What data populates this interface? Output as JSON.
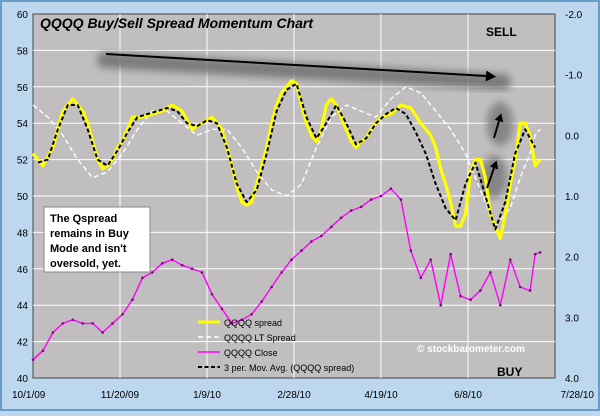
{
  "chart_data": {
    "type": "line",
    "title": "QQQQ Buy/Sell Spread Momentum Chart",
    "x_tick_labels": [
      "10/1/09",
      "11/20/09",
      "1/9/10",
      "2/28/10",
      "4/19/10",
      "6/8/10",
      "7/28/10"
    ],
    "left_axis": {
      "range": [
        40,
        60
      ],
      "ticks": [
        40,
        42,
        44,
        46,
        48,
        50,
        52,
        54,
        56,
        58,
        60
      ],
      "label": ""
    },
    "right_axis": {
      "range": [
        -2.0,
        4.0
      ],
      "inverted": true,
      "ticks": [
        "-2.0",
        "-1.0",
        "0.0",
        "1.0",
        "2.0",
        "3.0",
        "4.0"
      ],
      "label": ""
    },
    "grid": true,
    "legend_position": "bottom-center",
    "annotations": {
      "sell": "SELL",
      "buy": "BUY",
      "note": "The Qspread remains in Buy Mode and isn't oversold, yet.",
      "copyright": "© stockbarometer.com"
    },
    "series": [
      {
        "name": "QQQQ spread",
        "axis": "right",
        "color": "#ffff00",
        "x": [
          0,
          2,
          4,
          6,
          8,
          10,
          11,
          12,
          13,
          14,
          15,
          16,
          17,
          18,
          19,
          20,
          22,
          24,
          26,
          28,
          30,
          32,
          34,
          36,
          38,
          39,
          40,
          41,
          42,
          43,
          44,
          45,
          46,
          47,
          48,
          49,
          50,
          51,
          52,
          53,
          54,
          55,
          56,
          57,
          58,
          59,
          60,
          61,
          62,
          63,
          64,
          65,
          66,
          67,
          68,
          70,
          72,
          74,
          76,
          78,
          80,
          81,
          82,
          83,
          84,
          85,
          86,
          87,
          88,
          89,
          90,
          91,
          92,
          93,
          94,
          95,
          96,
          97,
          98,
          99,
          100,
          101,
          102
        ],
        "values": [
          0.3,
          0.5,
          0.2,
          -0.4,
          -0.6,
          -0.4,
          -0.2,
          0.1,
          0.4,
          0.55,
          0.5,
          0.4,
          0.2,
          0.1,
          -0.1,
          -0.3,
          -0.3,
          -0.35,
          -0.4,
          -0.5,
          -0.4,
          -0.1,
          -0.2,
          -0.3,
          -0.1,
          0.2,
          0.5,
          0.85,
          1.1,
          1.15,
          1.1,
          0.8,
          0.5,
          0.2,
          -0.2,
          -0.5,
          -0.7,
          -0.8,
          -0.9,
          -0.85,
          -0.5,
          -0.2,
          0.0,
          0.1,
          -0.1,
          -0.5,
          -0.6,
          -0.5,
          -0.3,
          -0.1,
          0.1,
          0.2,
          0.1,
          0.05,
          -0.1,
          -0.3,
          -0.35,
          -0.5,
          -0.45,
          -0.2,
          0.0,
          0.2,
          0.55,
          0.8,
          1.1,
          1.5,
          1.5,
          1.3,
          0.6,
          0.4,
          0.4,
          0.7,
          1.3,
          1.5,
          1.7,
          1.3,
          0.8,
          0.4,
          -0.2,
          -0.2,
          0.0,
          0.5,
          0.4
        ]
      },
      {
        "name": "QQQQ LT Spread",
        "axis": "right",
        "color": "#ffffff",
        "x": [
          0,
          3,
          6,
          9,
          12,
          15,
          18,
          21,
          24,
          27,
          30,
          33,
          36,
          39,
          42,
          45,
          48,
          51,
          54,
          57,
          60,
          63,
          66,
          69,
          72,
          75,
          78,
          81,
          84,
          87,
          90,
          93,
          96,
          98,
          100,
          101,
          102
        ],
        "values": [
          -0.5,
          -0.3,
          0.0,
          0.4,
          0.7,
          0.6,
          0.3,
          -0.1,
          -0.4,
          -0.4,
          -0.2,
          0.0,
          -0.1,
          -0.1,
          0.2,
          0.6,
          0.9,
          1.0,
          0.8,
          0.2,
          -0.3,
          -0.5,
          -0.4,
          -0.3,
          -0.6,
          -0.8,
          -0.7,
          -0.4,
          -0.1,
          0.3,
          0.9,
          1.5,
          1.2,
          0.7,
          0.3,
          0.0,
          -0.1
        ]
      },
      {
        "name": "QQQQ Close",
        "axis": "left",
        "color": "#ff00ff",
        "x": [
          0,
          2,
          4,
          6,
          8,
          10,
          12,
          14,
          16,
          18,
          20,
          22,
          24,
          26,
          28,
          30,
          32,
          34,
          36,
          38,
          40,
          42,
          44,
          46,
          48,
          50,
          52,
          54,
          56,
          58,
          60,
          62,
          64,
          66,
          68,
          70,
          72,
          74,
          76,
          78,
          80,
          82,
          84,
          86,
          88,
          90,
          92,
          94,
          96,
          98,
          100,
          101,
          102
        ],
        "values": [
          41.0,
          41.5,
          42.5,
          43.0,
          43.2,
          43.0,
          43.0,
          42.5,
          43.0,
          43.5,
          44.3,
          45.5,
          45.8,
          46.3,
          46.5,
          46.2,
          46.0,
          45.8,
          44.6,
          43.8,
          43.0,
          43.2,
          43.5,
          44.2,
          45.0,
          45.8,
          46.5,
          47.0,
          47.5,
          47.8,
          48.3,
          48.8,
          49.2,
          49.4,
          49.8,
          50.0,
          50.4,
          49.8,
          47.0,
          45.5,
          46.5,
          44.0,
          46.8,
          44.5,
          44.3,
          44.8,
          45.8,
          44.0,
          46.5,
          45.0,
          44.8,
          46.8,
          46.9
        ]
      },
      {
        "name": "3 per. Mov. Avg. (QQQQ spread)",
        "axis": "right",
        "color": "#000000",
        "dashed": true,
        "x": [
          1,
          3,
          5,
          7,
          9,
          11,
          13,
          15,
          17,
          19,
          21,
          23,
          25,
          27,
          29,
          31,
          33,
          35,
          37,
          39,
          41,
          43,
          45,
          47,
          49,
          51,
          53,
          55,
          57,
          59,
          61,
          63,
          65,
          67,
          69,
          71,
          73,
          75,
          77,
          79,
          81,
          83,
          85,
          87,
          89,
          91,
          93,
          95,
          97,
          99,
          101
        ],
        "values": [
          0.45,
          0.4,
          -0.1,
          -0.5,
          -0.5,
          -0.1,
          0.4,
          0.5,
          0.25,
          -0.05,
          -0.3,
          -0.35,
          -0.4,
          -0.45,
          -0.4,
          -0.2,
          -0.15,
          -0.25,
          -0.2,
          0.2,
          0.8,
          1.1,
          0.9,
          0.3,
          -0.4,
          -0.75,
          -0.85,
          -0.3,
          0.05,
          -0.2,
          -0.5,
          -0.2,
          0.15,
          0.05,
          -0.2,
          -0.35,
          -0.45,
          -0.35,
          -0.05,
          0.3,
          0.8,
          1.2,
          1.4,
          0.8,
          0.45,
          1.0,
          1.55,
          1.1,
          0.3,
          -0.1,
          0.2
        ]
      }
    ]
  }
}
